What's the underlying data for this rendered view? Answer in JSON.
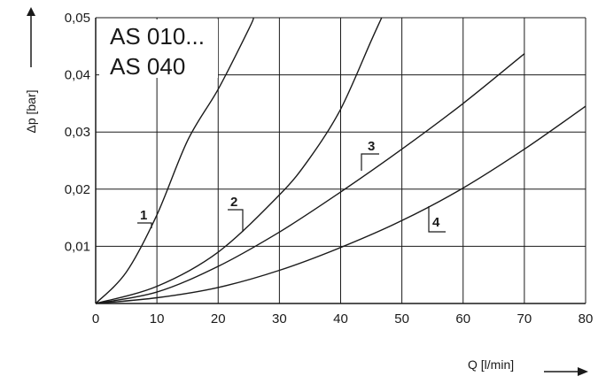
{
  "chart_data": {
    "type": "line",
    "title_lines": [
      "AS 010...",
      "AS 040"
    ],
    "xlabel": "Q [l/min]",
    "ylabel": "Δp [bar]",
    "xlim": [
      0,
      80
    ],
    "ylim": [
      0,
      0.05
    ],
    "x_ticks": [
      0,
      10,
      20,
      30,
      40,
      50,
      60,
      70,
      80
    ],
    "x_tick_labels": [
      "0",
      "10",
      "20",
      "30",
      "40",
      "50",
      "60",
      "70",
      "80"
    ],
    "y_ticks": [
      0.01,
      0.02,
      0.03,
      0.04,
      0.05
    ],
    "y_tick_labels": [
      "0,01",
      "0,02",
      "0,03",
      "0,04",
      "0,05"
    ],
    "grid": true,
    "series": [
      {
        "label": "1",
        "x": [
          0,
          5,
          10,
          15,
          20,
          25,
          25.8
        ],
        "y": [
          0,
          0.0055,
          0.0155,
          0.0285,
          0.0375,
          0.048,
          0.05
        ]
      },
      {
        "label": "2",
        "x": [
          0,
          10,
          20,
          30,
          35,
          40,
          45,
          46.7
        ],
        "y": [
          0,
          0.003,
          0.009,
          0.019,
          0.0255,
          0.034,
          0.046,
          0.05
        ]
      },
      {
        "label": "3",
        "x": [
          0,
          10,
          20,
          30,
          40,
          50,
          60,
          70
        ],
        "y": [
          0,
          0.002,
          0.0065,
          0.0125,
          0.0195,
          0.027,
          0.035,
          0.0437
        ]
      },
      {
        "label": "4",
        "x": [
          0,
          10,
          20,
          30,
          40,
          50,
          60,
          70,
          80
        ],
        "y": [
          0,
          0.001,
          0.0028,
          0.0058,
          0.0098,
          0.0145,
          0.0202,
          0.027,
          0.0345
        ]
      }
    ]
  }
}
